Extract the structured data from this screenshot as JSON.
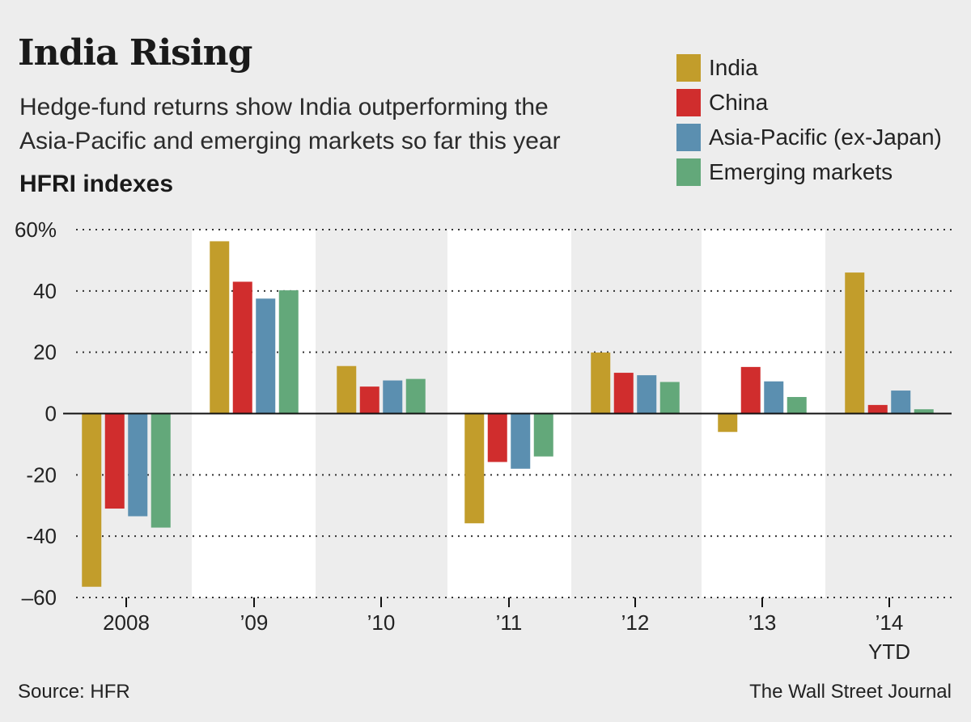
{
  "title": "India Rising",
  "subtitle_lines": [
    "Hedge-fund returns show India outperforming the",
    "Asia-Pacific and emerging markets so far this year"
  ],
  "index_label": "HFRI indexes",
  "source": "Source: HFR",
  "credit": "The Wall Street Journal",
  "legend": [
    {
      "name": "India",
      "color": "#c29d2b"
    },
    {
      "name": "China",
      "color": "#d02d2d"
    },
    {
      "name": "Asia-Pacific (ex-Japan)",
      "color": "#5b8fb0"
    },
    {
      "name": "Emerging markets",
      "color": "#63a87a"
    }
  ],
  "chart_data": {
    "type": "bar",
    "title": "India Rising",
    "ylabel": "HFRI indexes",
    "ylim": [
      -60,
      60
    ],
    "yticks": [
      60,
      40,
      20,
      0,
      -20,
      -40,
      -60
    ],
    "ytick_labels": [
      "60%",
      "40",
      "20",
      "0",
      "-20",
      "-40",
      "–60"
    ],
    "categories": [
      "2008",
      "’09",
      "’10",
      "’11",
      "’12",
      "’13",
      "’14"
    ],
    "category_sublabels": [
      "",
      "",
      "",
      "",
      "",
      "",
      "YTD"
    ],
    "series": [
      {
        "name": "India",
        "color": "#c29d2b",
        "values": [
          -56.5,
          56.2,
          15.5,
          -35.8,
          19.9,
          -6.0,
          46.0
        ]
      },
      {
        "name": "China",
        "color": "#d02d2d",
        "values": [
          -31.0,
          43.0,
          8.8,
          -15.8,
          13.3,
          15.2,
          2.8
        ]
      },
      {
        "name": "Asia-Pacific (ex-Japan)",
        "color": "#5b8fb0",
        "values": [
          -33.5,
          37.5,
          10.8,
          -18.0,
          12.5,
          10.5,
          7.5
        ]
      },
      {
        "name": "Emerging markets",
        "color": "#63a87a",
        "values": [
          -37.2,
          40.2,
          11.3,
          -14.0,
          10.3,
          5.4,
          1.4
        ]
      }
    ],
    "grid": true,
    "shaded_bands": [
      "’09",
      "’11",
      "’13"
    ]
  }
}
